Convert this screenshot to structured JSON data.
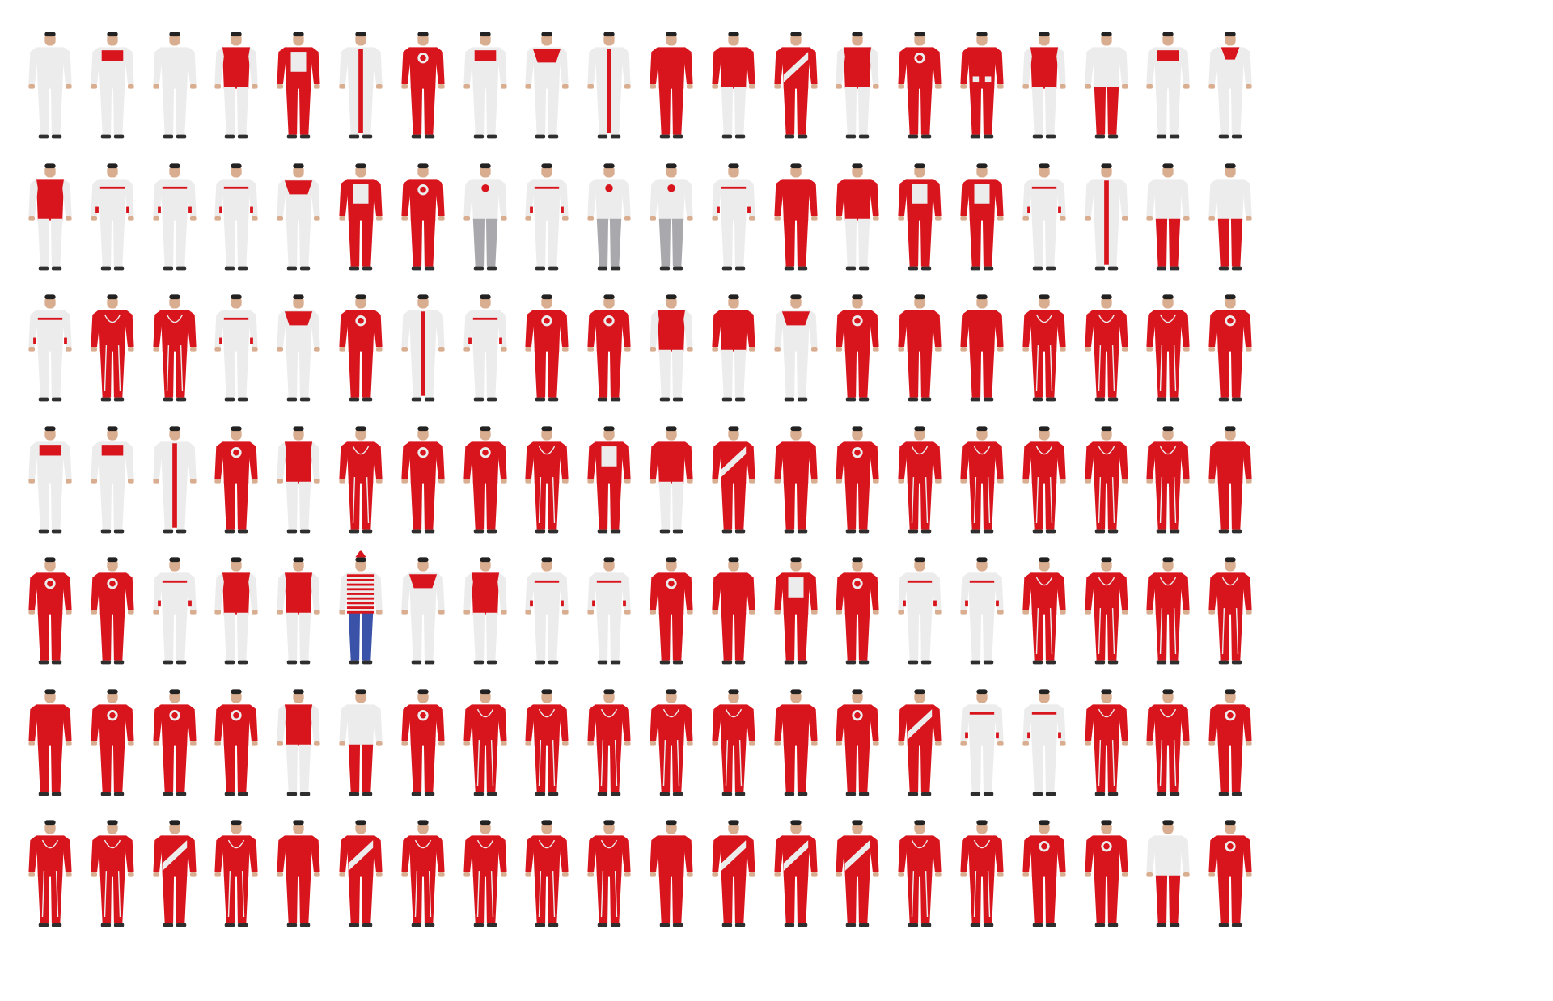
{
  "colors": {
    "background": "#ffffff",
    "suit_red": "#d8141c",
    "suit_white": "#ececec",
    "suit_grey": "#a8a8ad",
    "skin": "#d9ad8f",
    "hair": "#222222",
    "shoe": "#2e2e2e",
    "pants_blue": "#3a53a8"
  },
  "grid": {
    "rows": 7,
    "columns": 20
  },
  "figures": [
    [
      "white",
      "white-redchest",
      "white",
      "white-redtorso",
      "red-whitepanel",
      "white-redstripe",
      "red-whitechest",
      "white-redchest",
      "white-redyoke",
      "white-redstripe",
      "red",
      "red-whitelegs",
      "red-diagonal",
      "white-redtorso",
      "red-whitechest",
      "red-pockets",
      "white-redtorso",
      "white-redlegs",
      "white-redchest",
      "white-redcollar"
    ],
    [
      "white-redtorso",
      "white-redtrim",
      "white-redtrim",
      "white-redtrim",
      "white-redyoke",
      "red-whitepanel",
      "red-whitechest",
      "grey-whitetop",
      "white-redtrim",
      "grey-whitetop",
      "grey-whitetop",
      "white-redtrim",
      "red",
      "red-whitelegs",
      "red-whitepanel",
      "red-whitepanel",
      "white-redtrim",
      "white-redstripe",
      "white-redlegs",
      "white-redlegs"
    ],
    [
      "white-redtrim",
      "red-whitelines",
      "red-whitelines",
      "white-redtrim",
      "white-redyoke",
      "red-whitechest",
      "white-redstripe",
      "white-redtrim",
      "red-whitechest",
      "red-whitechest",
      "white-redtorso",
      "red-whitelegs",
      "white-redyoke",
      "red-whitechest",
      "red",
      "red",
      "red-whitelines",
      "red-whitelines",
      "red-whitelines",
      "red-whitechest"
    ],
    [
      "white-redchest",
      "white-redchest",
      "white-redstripe",
      "red-whitechest",
      "white-redtorso",
      "red-whitelines",
      "red-whitechest",
      "red-whitechest",
      "red-whitelines",
      "red-whitepanel",
      "red-whitelegs",
      "red-diagonal",
      "red",
      "red-whitechest",
      "red-whitelines",
      "red-whitelines",
      "red-whitelines",
      "red-whitelines",
      "red-whitelines",
      "red"
    ],
    [
      "red-whitechest",
      "red-whitechest",
      "white-redtrim",
      "white-redtorso",
      "white-redtorso",
      "striped-bluepants",
      "white-redyoke",
      "white-redtorso",
      "white-redtrim",
      "white-redtrim",
      "red-whitechest",
      "red",
      "red-whitepanel",
      "red-whitechest",
      "white-redtrim",
      "white-redtrim",
      "red-whitelines",
      "red-whitelines",
      "red-whitelines",
      "red-whitelines"
    ],
    [
      "red",
      "red-whitechest",
      "red-whitechest",
      "red-whitechest",
      "white-redtorso",
      "white-redlegs",
      "red-whitechest",
      "red-whitelines",
      "red-whitelines",
      "red-whitelines",
      "red-whitelines",
      "red-whitelines",
      "red",
      "red-whitechest",
      "red-diagonal",
      "white-redtrim",
      "white-redtrim",
      "red-whitelines",
      "red-whitelines",
      "red-whitechest"
    ],
    [
      "red-whitelines",
      "red-whitelines",
      "red-diagonal",
      "red-whitelines",
      "red",
      "red-diagonal",
      "red-whitelines",
      "red-whitelines",
      "red-whitelines",
      "red-whitelines",
      "red",
      "red-diagonal",
      "red-diagonal",
      "red-diagonal",
      "red-whitelines",
      "red-whitelines",
      "red-whitechest",
      "red-whitechest",
      "white-redlegs",
      "red-whitechest"
    ]
  ]
}
